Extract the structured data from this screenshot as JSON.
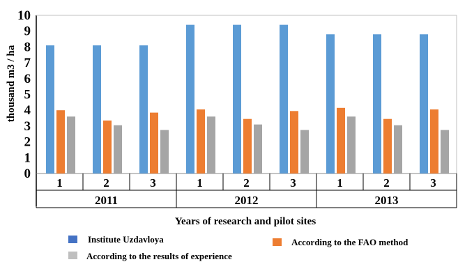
{
  "chart_data": {
    "type": "bar",
    "ylabel": "thousand m3 / ha",
    "xlabel": "Years of research and pilot sites",
    "ylim": [
      0,
      10
    ],
    "yticks": [
      "0",
      "1",
      "2",
      "3",
      "4",
      "5",
      "6",
      "7",
      "8",
      "9",
      "10"
    ],
    "grid": false,
    "legend_position": "bottom",
    "groups": [
      {
        "year": "2011",
        "sites": [
          "1",
          "2",
          "3"
        ]
      },
      {
        "year": "2012",
        "sites": [
          "1",
          "2",
          "3"
        ]
      },
      {
        "year": "2013",
        "sites": [
          "1",
          "2",
          "3"
        ]
      }
    ],
    "series": [
      {
        "name": "Institute Uzdavloya",
        "color": "#5b9bd5",
        "values": [
          8.1,
          8.1,
          8.1,
          9.4,
          9.4,
          9.4,
          8.8,
          8.8,
          8.8
        ]
      },
      {
        "name": "According to the FAO method",
        "color": "#ed7d31",
        "values": [
          4.0,
          3.35,
          3.85,
          4.05,
          3.45,
          3.95,
          4.15,
          3.45,
          4.05
        ]
      },
      {
        "name": "According to the results of experience",
        "color": "#a5a5a5",
        "values": [
          3.6,
          3.05,
          2.75,
          3.6,
          3.1,
          2.75,
          3.6,
          3.05,
          2.75
        ]
      }
    ],
    "legend_marker_colors": [
      "#4472c4",
      "#ed7d31",
      "#bfbfbf"
    ]
  }
}
